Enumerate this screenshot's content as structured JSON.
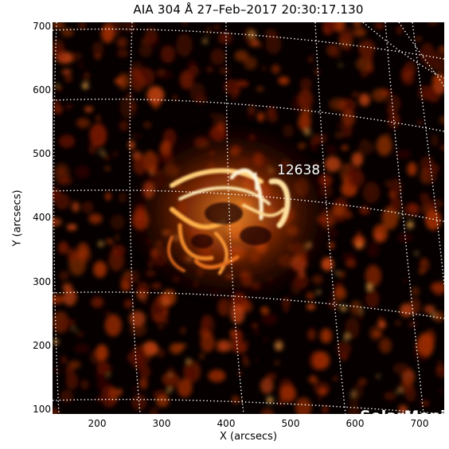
{
  "image": {
    "title": "AIA 304 Å 27–Feb–2017 20:30:17.130",
    "region_label": "12638",
    "watermark": "SolarMonitor.org",
    "xlabel": "X (arcsecs)",
    "ylabel": "Y (arcsecs)",
    "x_ticks": [
      "200",
      "300",
      "400",
      "500",
      "600",
      "700"
    ],
    "y_ticks": [
      "700",
      "600",
      "500",
      "400",
      "300",
      "200",
      "100"
    ],
    "x_range": [
      130,
      735
    ],
    "y_range": [
      100,
      705
    ],
    "colors": {
      "background": "#060000",
      "plasma_dim": "#5a0f02",
      "plasma_mid": "#c2410a",
      "plasma_bright": "#ffb24a",
      "plasma_hot": "#fff4d8",
      "grid": "#ffffff"
    }
  }
}
